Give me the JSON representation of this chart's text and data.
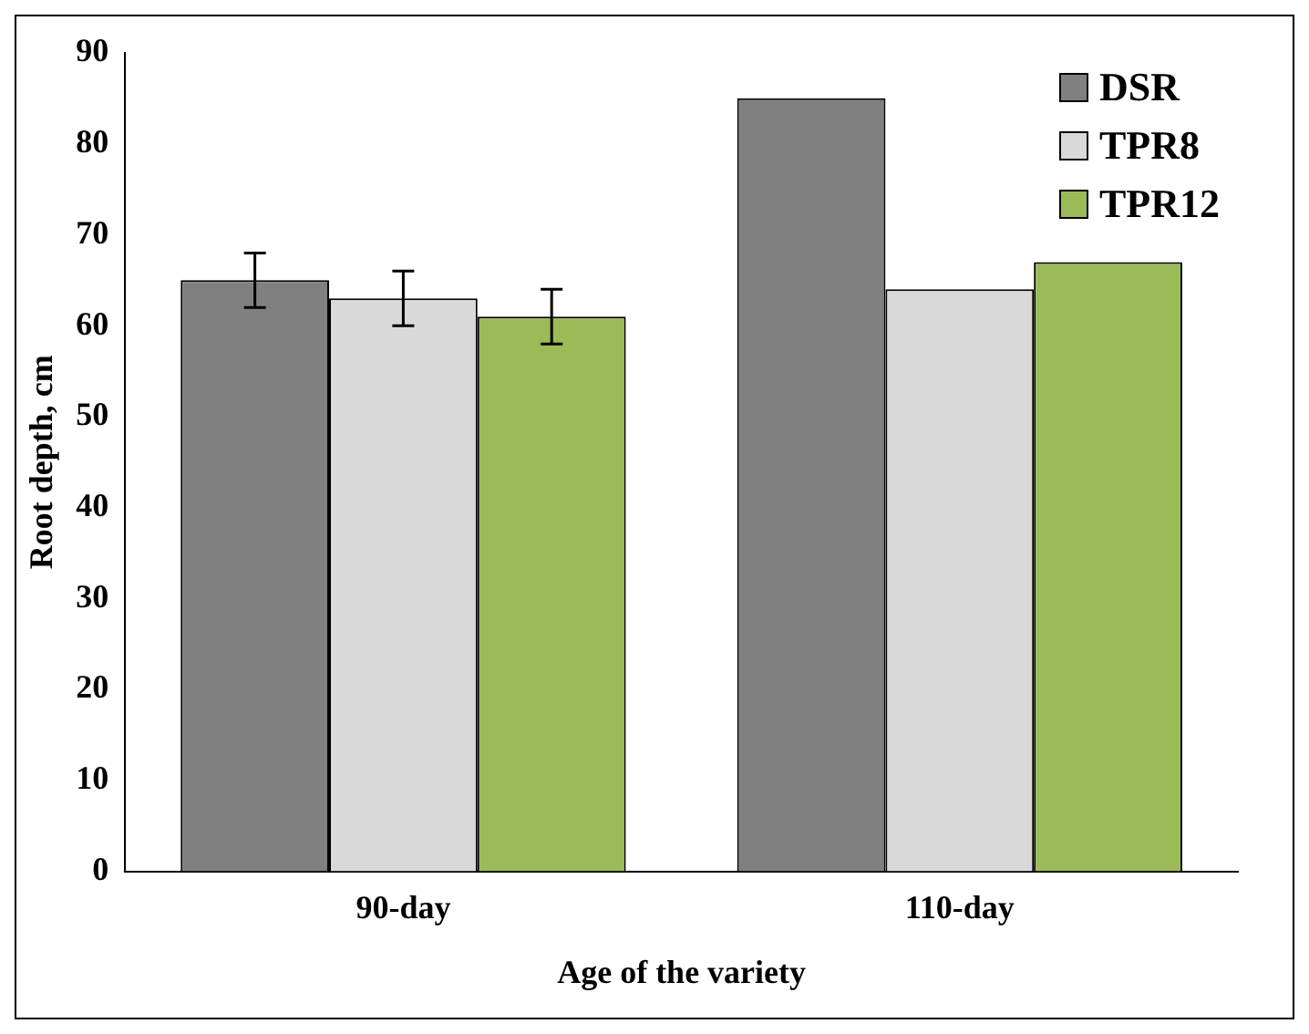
{
  "chart_data": {
    "type": "bar",
    "xlabel": "Age of the variety",
    "ylabel": "Root depth, cm",
    "categories": [
      "90-day",
      "110-day"
    ],
    "series": [
      {
        "name": "DSR",
        "color": "#808080",
        "values": [
          65,
          85
        ],
        "errors": [
          3,
          null
        ]
      },
      {
        "name": "TPR8",
        "color": "#d9d9d9",
        "values": [
          63,
          64
        ],
        "errors": [
          3,
          null
        ]
      },
      {
        "name": "TPR12",
        "color": "#9bbb59",
        "values": [
          61,
          67
        ],
        "errors": [
          3,
          null
        ]
      }
    ],
    "ylim": [
      0,
      90
    ],
    "yticks": [
      0,
      10,
      20,
      30,
      40,
      50,
      60,
      70,
      80,
      90
    ],
    "grid": false,
    "legend": "top right"
  }
}
